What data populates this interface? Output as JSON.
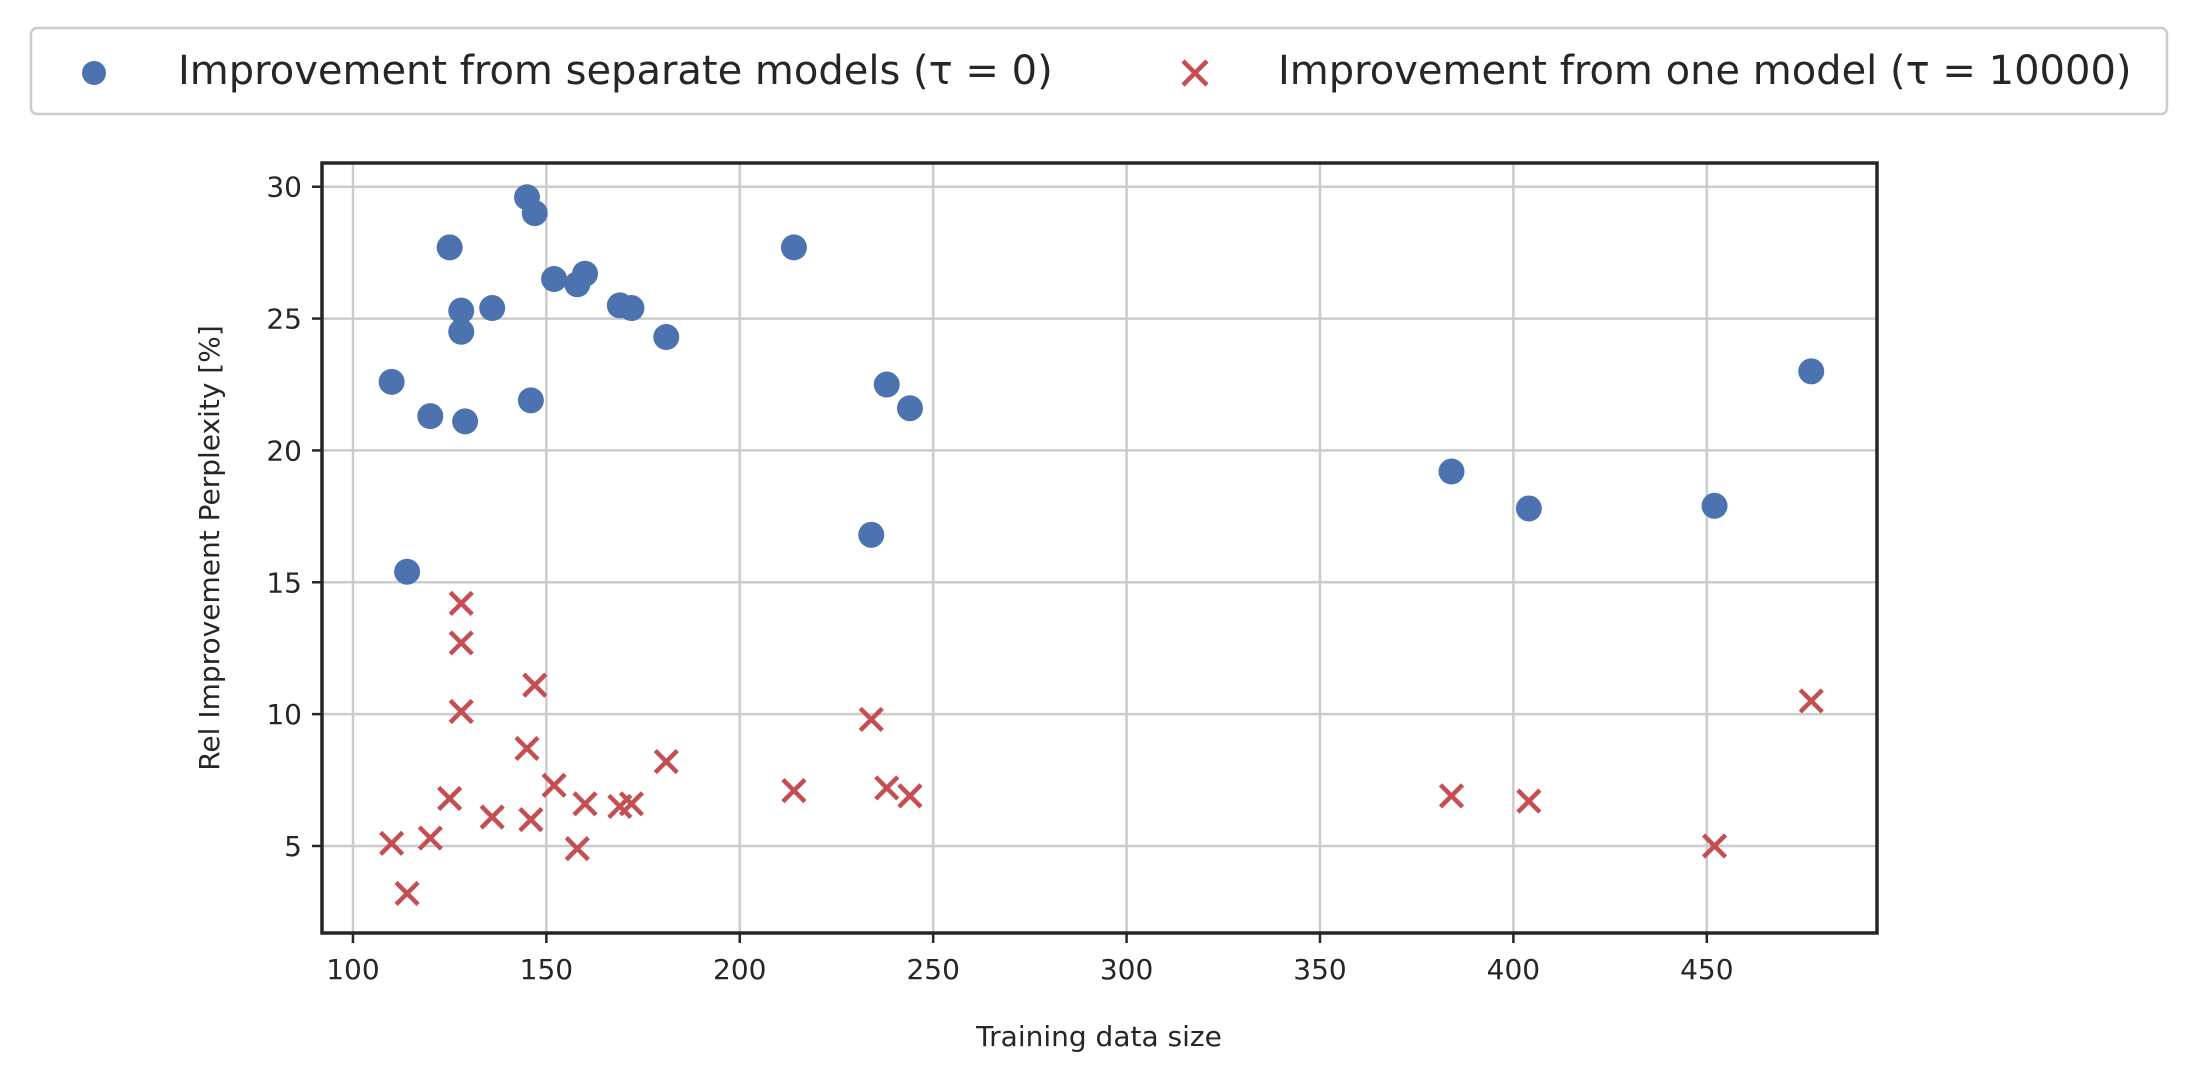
{
  "chart_data": {
    "type": "scatter",
    "title": "",
    "xlabel": "Training data size",
    "ylabel": "Rel Improvement Perplexity [%]",
    "xlim": [
      92,
      494
    ],
    "ylim": [
      1.7,
      30.9
    ],
    "xticks": [
      100,
      150,
      200,
      250,
      300,
      350,
      400,
      450
    ],
    "yticks": [
      5,
      10,
      15,
      20,
      25,
      30
    ],
    "grid": true,
    "legend_position": "top, outside",
    "series": [
      {
        "name": "Improvement from separate models (τ = 0)",
        "marker": "circle",
        "color": "#4c72b0",
        "points": [
          [
            110,
            22.6
          ],
          [
            114,
            15.4
          ],
          [
            120,
            21.3
          ],
          [
            125,
            27.7
          ],
          [
            128,
            25.3
          ],
          [
            128,
            24.5
          ],
          [
            129,
            21.1
          ],
          [
            136,
            25.4
          ],
          [
            145,
            29.6
          ],
          [
            146,
            21.9
          ],
          [
            147,
            29.0
          ],
          [
            152,
            26.5
          ],
          [
            158,
            26.3
          ],
          [
            160,
            26.7
          ],
          [
            169,
            25.5
          ],
          [
            172,
            25.4
          ],
          [
            181,
            24.3
          ],
          [
            214,
            27.7
          ],
          [
            234,
            16.8
          ],
          [
            238,
            22.5
          ],
          [
            244,
            21.6
          ],
          [
            384,
            19.2
          ],
          [
            404,
            17.8
          ],
          [
            452,
            17.9
          ],
          [
            477,
            23.0
          ]
        ]
      },
      {
        "name": "Improvement from one model (τ = 10000)",
        "marker": "x",
        "color": "#c44e52",
        "points": [
          [
            110,
            5.1
          ],
          [
            114,
            3.2
          ],
          [
            120,
            5.3
          ],
          [
            125,
            6.8
          ],
          [
            128,
            14.2
          ],
          [
            128,
            12.7
          ],
          [
            128,
            10.1
          ],
          [
            136,
            6.1
          ],
          [
            145,
            8.7
          ],
          [
            146,
            6.0
          ],
          [
            147,
            11.1
          ],
          [
            152,
            7.3
          ],
          [
            158,
            4.9
          ],
          [
            160,
            6.6
          ],
          [
            169,
            6.5
          ],
          [
            172,
            6.6
          ],
          [
            181,
            8.2
          ],
          [
            214,
            7.1
          ],
          [
            234,
            9.8
          ],
          [
            238,
            7.2
          ],
          [
            244,
            6.9
          ],
          [
            384,
            6.9
          ],
          [
            404,
            6.7
          ],
          [
            452,
            5.0
          ],
          [
            477,
            10.5
          ]
        ]
      }
    ]
  }
}
